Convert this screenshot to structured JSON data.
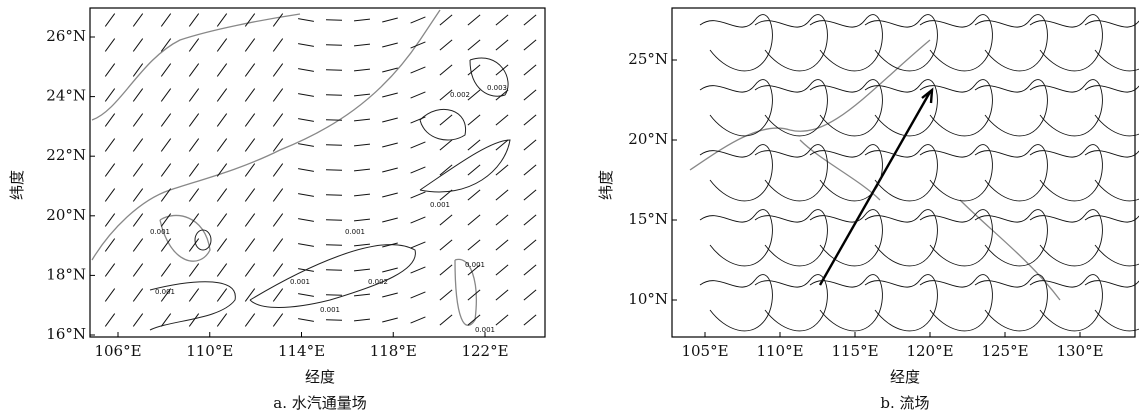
{
  "panels": [
    {
      "caption": "a. 水汽通量场",
      "xlabel": "经度",
      "ylabel": "纬度",
      "xticks": [
        "106°E",
        "110°E",
        "114°E",
        "118°E",
        "122°E"
      ],
      "yticks": [
        "26°N",
        "24°N",
        "22°N",
        "20°N",
        "18°N",
        "16°N"
      ],
      "contour_labels": [
        "0.001",
        "0.002",
        "0.003",
        "0.001",
        "0.002",
        "0.001",
        "0.001",
        "0.001",
        "0.001",
        "0.001",
        "0.001"
      ]
    },
    {
      "caption": "b. 流场",
      "xlabel": "经度",
      "ylabel": "纬度",
      "xticks": [
        "105°E",
        "110°E",
        "115°E",
        "120°E",
        "125°E",
        "130°E"
      ],
      "yticks": [
        "25°N",
        "20°N",
        "15°N",
        "10°N"
      ]
    }
  ]
}
